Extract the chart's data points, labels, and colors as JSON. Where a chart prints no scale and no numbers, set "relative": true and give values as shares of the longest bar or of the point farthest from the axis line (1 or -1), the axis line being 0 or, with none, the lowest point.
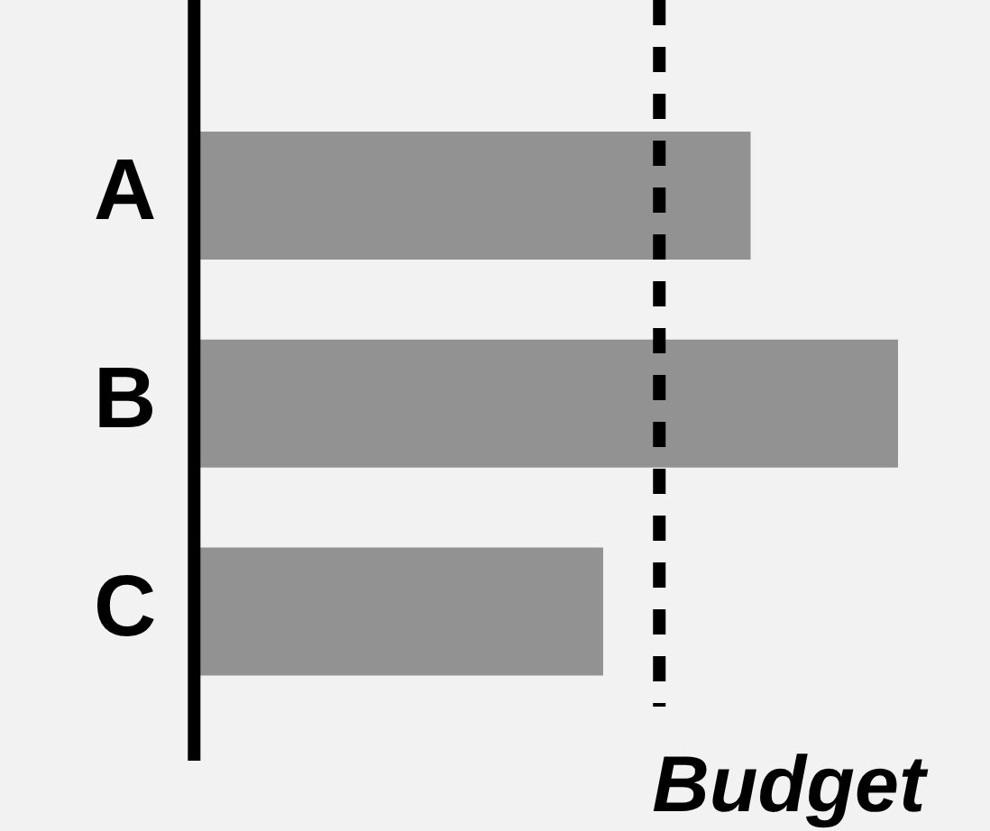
{
  "chart_data": {
    "type": "bar",
    "orientation": "horizontal",
    "relative": true,
    "categories": [
      "A",
      "B",
      "C"
    ],
    "values": [
      0.79,
      1,
      0.58
    ],
    "color": "#929292",
    "ref_lines": [
      {
        "axis": "x",
        "value": 0.66,
        "label": "Budget",
        "color": "#000000",
        "line_style": "dashed"
      }
    ],
    "legend": false
  }
}
